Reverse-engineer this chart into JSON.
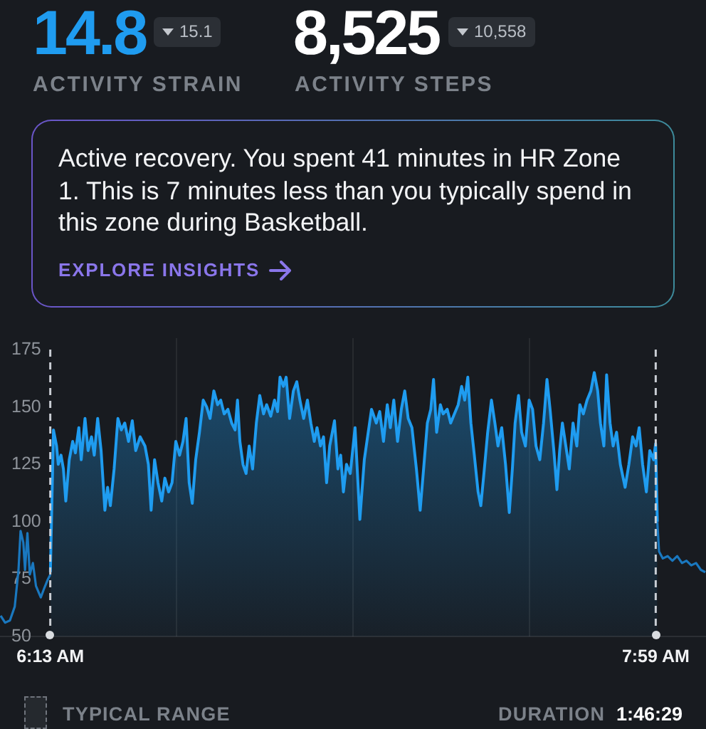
{
  "chart_data": {
    "type": "line",
    "annotations": [
      "14.8",
      "15.1",
      "ACTIVITY STRAIN",
      "8,525",
      "10,558",
      "ACTIVITY STEPS",
      "Active recovery. You spent 41 minutes in HR Zone 1. This is 7 minutes less than you typically spend in this zone during Basketball.",
      "EXPLORE INSIGHTS",
      "TYPICAL RANGE",
      "DURATION",
      "1:46:29"
    ],
    "xlim": [
      6.07,
      8.13
    ],
    "xticks": [
      {
        "value": 6.2167,
        "label": "6:13 AM"
      },
      {
        "value": 6.585,
        "label": null
      },
      {
        "value": 7.1,
        "label": null
      },
      {
        "value": 7.615,
        "label": null
      },
      {
        "value": 7.9833,
        "label": "7:59 AM"
      }
    ],
    "ylim": [
      50,
      180
    ],
    "yticks": [
      50,
      75,
      100,
      125,
      150,
      175
    ],
    "grid": "x",
    "series": [
      {
        "type": "line",
        "color": "#1a78bf",
        "x": [
          6.072,
          6.085,
          6.099,
          6.113,
          6.124,
          6.13,
          6.138,
          6.143,
          6.15,
          6.157,
          6.166,
          6.175,
          6.189,
          6.199,
          6.21,
          6.217
        ],
        "values": [
          59,
          56,
          57,
          63,
          79,
          96,
          91,
          79,
          95,
          77,
          82,
          72,
          67,
          71,
          75,
          77
        ]
      },
      {
        "type": "area",
        "color": "#1f9cf0",
        "x": [
          6.217,
          6.226,
          6.235,
          6.24,
          6.248,
          6.255,
          6.262,
          6.272,
          6.282,
          6.29,
          6.3,
          6.307,
          6.318,
          6.327,
          6.337,
          6.345,
          6.355,
          6.365,
          6.376,
          6.384,
          6.392,
          6.403,
          6.414,
          6.424,
          6.434,
          6.445,
          6.456,
          6.466,
          6.479,
          6.493,
          6.503,
          6.511,
          6.521,
          6.531,
          6.542,
          6.551,
          6.562,
          6.572,
          6.583,
          6.594,
          6.604,
          6.613,
          6.622,
          6.631,
          6.641,
          6.652,
          6.663,
          6.673,
          6.683,
          6.694,
          6.705,
          6.714,
          6.724,
          6.735,
          6.746,
          6.756,
          6.763,
          6.77,
          6.779,
          6.788,
          6.797,
          6.807,
          6.818,
          6.828,
          6.839,
          6.848,
          6.86,
          6.871,
          6.88,
          6.887,
          6.897,
          6.905,
          6.915,
          6.926,
          6.936,
          6.945,
          6.956,
          6.967,
          6.977,
          6.987,
          6.995,
          7.005,
          7.014,
          7.023,
          7.032,
          7.046,
          7.056,
          7.064,
          7.072,
          7.081,
          7.092,
          7.106,
          7.12,
          7.133,
          7.154,
          7.168,
          7.178,
          7.189,
          7.2,
          7.209,
          7.219,
          7.23,
          7.241,
          7.251,
          7.261,
          7.272,
          7.285,
          7.296,
          7.306,
          7.317,
          7.327,
          7.335,
          7.344,
          7.355,
          7.363,
          7.375,
          7.385,
          7.396,
          7.407,
          7.417,
          7.426,
          7.435,
          7.444,
          7.454,
          7.465,
          7.473,
          7.482,
          7.493,
          7.504,
          7.514,
          7.523,
          7.534,
          7.545,
          7.556,
          7.565,
          7.573,
          7.583,
          7.592,
          7.603,
          7.614,
          7.624,
          7.634,
          7.645,
          7.656,
          7.666,
          7.675,
          7.686,
          7.695,
          7.703,
          7.711,
          7.721,
          7.731,
          7.742,
          7.753,
          7.762,
          7.772,
          7.783,
          7.794,
          7.804,
          7.814,
          7.822,
          7.832,
          7.84,
          7.85,
          7.859,
          7.869,
          7.88,
          7.894,
          7.905,
          7.916,
          7.926,
          7.935,
          7.945,
          7.956,
          7.966,
          7.977,
          7.983,
          7.988
        ],
        "values": [
          78,
          140,
          133,
          125,
          129,
          123,
          109,
          127,
          135,
          130,
          141,
          127,
          145,
          131,
          137,
          129,
          145,
          131,
          105,
          115,
          107,
          123,
          145,
          140,
          143,
          135,
          144,
          131,
          137,
          133,
          125,
          105,
          127,
          117,
          109,
          119,
          113,
          117,
          135,
          129,
          135,
          145,
          117,
          108,
          127,
          139,
          153,
          150,
          145,
          157,
          151,
          153,
          147,
          149,
          143,
          140,
          153,
          135,
          125,
          121,
          133,
          123,
          143,
          155,
          147,
          151,
          146,
          153,
          148,
          163,
          159,
          163,
          145,
          157,
          161,
          153,
          145,
          153,
          143,
          135,
          141,
          133,
          137,
          117,
          133,
          144,
          123,
          129,
          113,
          125,
          121,
          141,
          101,
          127,
          149,
          143,
          148,
          135,
          151,
          141,
          153,
          135,
          149,
          157,
          145,
          141,
          123,
          105,
          123,
          143,
          149,
          162,
          139,
          151,
          147,
          149,
          143,
          147,
          151,
          159,
          153,
          163,
          143,
          129,
          113,
          107,
          121,
          139,
          153,
          143,
          133,
          141,
          125,
          104,
          123,
          143,
          155,
          139,
          133,
          153,
          149,
          133,
          127,
          143,
          162,
          149,
          131,
          114,
          131,
          143,
          133,
          123,
          143,
          133,
          151,
          147,
          153,
          157,
          165,
          157,
          143,
          133,
          164,
          143,
          133,
          139,
          125,
          115,
          125,
          137,
          133,
          141,
          125,
          113,
          131,
          127,
          134,
          100
        ]
      },
      {
        "type": "line",
        "color": "#1a78bf",
        "x": [
          7.988,
          7.993,
          8.004,
          8.018,
          8.032,
          8.046,
          8.06,
          8.073,
          8.087,
          8.101,
          8.115,
          8.128
        ],
        "values": [
          100,
          87,
          84,
          85,
          83,
          85,
          82,
          83,
          81,
          82,
          79,
          78
        ]
      }
    ]
  }
}
